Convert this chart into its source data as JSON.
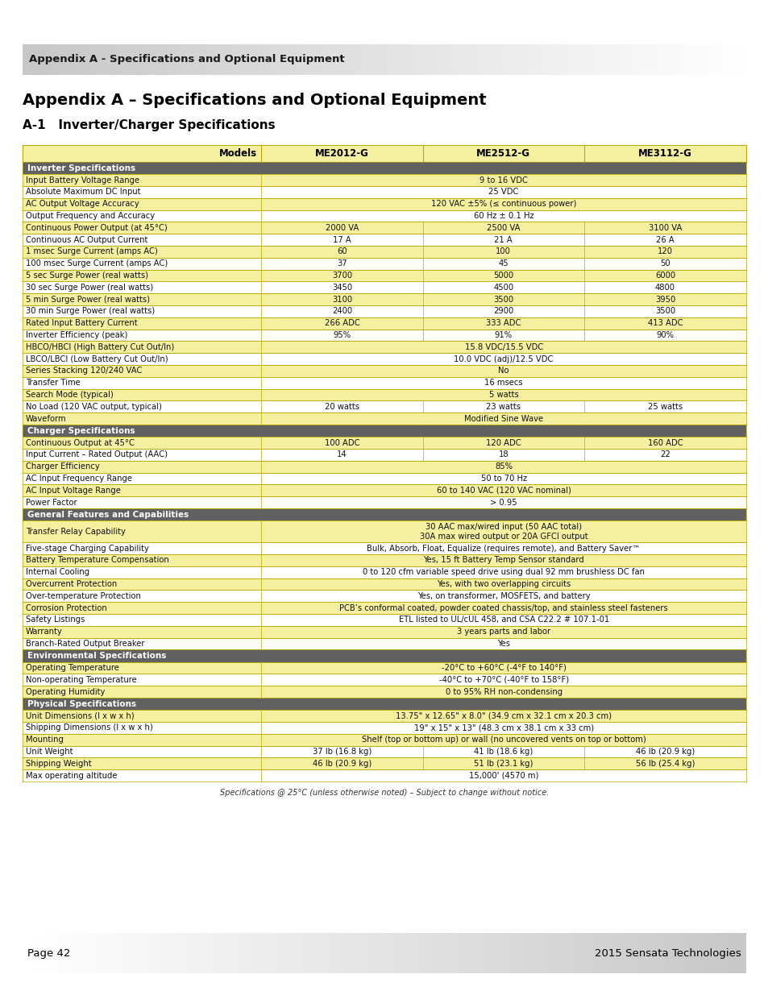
{
  "header_banner_text": "Appendix A - Specifications and Optional Equipment",
  "title1": "Appendix A – Specifications and Optional Equipment",
  "title2": "A-1   Inverter/Charger Specifications",
  "footer_left": "Page 42",
  "footer_right": "2015 Sensata Technologies",
  "footnote": "Specifications @ 25°C (unless otherwise noted) – Subject to change without notice.",
  "col_headers": [
    "Models",
    "ME2012-G",
    "ME2512-G",
    "ME3112-G"
  ],
  "section_color": "#616161",
  "section_text_color": "#ffffff",
  "row_yellow": "#f5f0a0",
  "row_white": "#ffffff",
  "border_color": "#b8a800",
  "rows": [
    {
      "type": "section",
      "label": "Inverter Specifications",
      "cols": [
        "",
        "",
        ""
      ]
    },
    {
      "type": "data",
      "color": "yellow",
      "label": "Input Battery Voltage Range",
      "cols": [
        "9 to 16 VDC",
        "",
        ""
      ]
    },
    {
      "type": "data",
      "color": "white",
      "label": "Absolute Maximum DC Input",
      "cols": [
        "25 VDC",
        "",
        ""
      ]
    },
    {
      "type": "data",
      "color": "yellow",
      "label": "AC Output Voltage Accuracy",
      "cols": [
        "120 VAC ±5% (≤ continuous power)",
        "",
        ""
      ]
    },
    {
      "type": "data",
      "color": "white",
      "label": "Output Frequency and Accuracy",
      "cols": [
        "60 Hz ± 0.1 Hz",
        "",
        ""
      ]
    },
    {
      "type": "data",
      "color": "yellow",
      "label": "Continuous Power Output (at 45°C)",
      "cols": [
        "2000 VA",
        "2500 VA",
        "3100 VA"
      ]
    },
    {
      "type": "data",
      "color": "white",
      "label": "Continuous AC Output Current",
      "cols": [
        "17 A",
        "21 A",
        "26 A"
      ]
    },
    {
      "type": "data",
      "color": "yellow",
      "label": "1 msec Surge Current (amps AC)",
      "cols": [
        "60",
        "100",
        "120"
      ]
    },
    {
      "type": "data",
      "color": "white",
      "label": "100 msec Surge Current (amps AC)",
      "cols": [
        "37",
        "45",
        "50"
      ]
    },
    {
      "type": "data",
      "color": "yellow",
      "label": "5 sec Surge Power (real watts)",
      "cols": [
        "3700",
        "5000",
        "6000"
      ]
    },
    {
      "type": "data",
      "color": "white",
      "label": "30 sec Surge Power (real watts)",
      "cols": [
        "3450",
        "4500",
        "4800"
      ]
    },
    {
      "type": "data",
      "color": "yellow",
      "label": "5 min Surge Power (real watts)",
      "cols": [
        "3100",
        "3500",
        "3950"
      ]
    },
    {
      "type": "data",
      "color": "white",
      "label": "30 min Surge Power (real watts)",
      "cols": [
        "2400",
        "2900",
        "3500"
      ]
    },
    {
      "type": "data",
      "color": "yellow",
      "label": "Rated Input Battery Current",
      "cols": [
        "266 ADC",
        "333 ADC",
        "413 ADC"
      ]
    },
    {
      "type": "data",
      "color": "white",
      "label": "Inverter Efficiency (peak)",
      "cols": [
        "95%",
        "91%",
        "90%"
      ]
    },
    {
      "type": "data",
      "color": "yellow",
      "label": "HBCO/HBCI (High Battery Cut Out/In)",
      "cols": [
        "15.8 VDC/15.5 VDC",
        "",
        ""
      ]
    },
    {
      "type": "data",
      "color": "white",
      "label": "LBCO/LBCI (Low Battery Cut Out/In)",
      "cols": [
        "10.0 VDC (adj)/12.5 VDC",
        "",
        ""
      ]
    },
    {
      "type": "data",
      "color": "yellow",
      "label": "Series Stacking 120/240 VAC",
      "cols": [
        "No",
        "",
        ""
      ]
    },
    {
      "type": "data",
      "color": "white",
      "label": "Transfer Time",
      "cols": [
        "16 msecs",
        "",
        ""
      ]
    },
    {
      "type": "data",
      "color": "yellow",
      "label": "Search Mode (typical)",
      "cols": [
        "5 watts",
        "",
        ""
      ]
    },
    {
      "type": "data",
      "color": "white",
      "label": "No Load (120 VAC output, typical)",
      "cols": [
        "20 watts",
        "23 watts",
        "25 watts"
      ]
    },
    {
      "type": "data",
      "color": "yellow",
      "label": "Waveform",
      "cols": [
        "Modified Sine Wave",
        "",
        ""
      ]
    },
    {
      "type": "section",
      "label": "Charger Specifications",
      "cols": [
        "",
        "",
        ""
      ]
    },
    {
      "type": "data",
      "color": "yellow",
      "label": "Continuous Output at 45°C",
      "cols": [
        "100 ADC",
        "120 ADC",
        "160 ADC"
      ]
    },
    {
      "type": "data",
      "color": "white",
      "label": "Input Current – Rated Output (AAC)",
      "cols": [
        "14",
        "18",
        "22"
      ]
    },
    {
      "type": "data",
      "color": "yellow",
      "label": "Charger Efficiency",
      "cols": [
        "85%",
        "",
        ""
      ]
    },
    {
      "type": "data",
      "color": "white",
      "label": "AC Input Frequency Range",
      "cols": [
        "50 to 70 Hz",
        "",
        ""
      ]
    },
    {
      "type": "data",
      "color": "yellow",
      "label": "AC Input Voltage Range",
      "cols": [
        "60 to 140 VAC (120 VAC nominal)",
        "",
        ""
      ]
    },
    {
      "type": "data",
      "color": "white",
      "label": "Power Factor",
      "cols": [
        "> 0.95",
        "",
        ""
      ]
    },
    {
      "type": "section",
      "label": "General Features and Capabilities",
      "cols": [
        "",
        "",
        ""
      ]
    },
    {
      "type": "data",
      "color": "yellow",
      "label": "Transfer Relay Capability",
      "cols": [
        "30 AAC max/wired input (50 AAC total)\n30A max wired output or 20A GFCI output",
        "",
        ""
      ]
    },
    {
      "type": "data",
      "color": "white",
      "label": "Five-stage Charging Capability",
      "cols": [
        "Bulk, Absorb, Float, Equalize (requires remote), and Battery Saver™",
        "",
        ""
      ]
    },
    {
      "type": "data",
      "color": "yellow",
      "label": "Battery Temperature Compensation",
      "cols": [
        "Yes, 15 ft Battery Temp Sensor standard",
        "",
        ""
      ]
    },
    {
      "type": "data",
      "color": "white",
      "label": "Internal Cooling",
      "cols": [
        "0 to 120 cfm variable speed drive using dual 92 mm brushless DC fan",
        "",
        ""
      ]
    },
    {
      "type": "data",
      "color": "yellow",
      "label": "Overcurrent Protection",
      "cols": [
        "Yes, with two overlapping circuits",
        "",
        ""
      ]
    },
    {
      "type": "data",
      "color": "white",
      "label": "Over-temperature Protection",
      "cols": [
        "Yes, on transformer, MOSFETS, and battery",
        "",
        ""
      ]
    },
    {
      "type": "data",
      "color": "yellow",
      "label": "Corrosion Protection",
      "cols": [
        "PCB’s conformal coated, powder coated chassis/top, and stainless steel fasteners",
        "",
        ""
      ]
    },
    {
      "type": "data",
      "color": "white",
      "label": "Safety Listings",
      "cols": [
        "ETL listed to UL/cUL 458, and CSA C22.2 # 107.1-01",
        "",
        ""
      ]
    },
    {
      "type": "data",
      "color": "yellow",
      "label": "Warranty",
      "cols": [
        "3 years parts and labor",
        "",
        ""
      ]
    },
    {
      "type": "data",
      "color": "white",
      "label": "Branch-Rated Output Breaker",
      "cols": [
        "Yes",
        "",
        ""
      ]
    },
    {
      "type": "section",
      "label": "Environmental Specifications",
      "cols": [
        "",
        "",
        ""
      ]
    },
    {
      "type": "data",
      "color": "yellow",
      "label": "Operating Temperature",
      "cols": [
        "-20°C to +60°C (-4°F to 140°F)",
        "",
        ""
      ]
    },
    {
      "type": "data",
      "color": "white",
      "label": "Non-operating Temperature",
      "cols": [
        "-40°C to +70°C (-40°F to 158°F)",
        "",
        ""
      ]
    },
    {
      "type": "data",
      "color": "yellow",
      "label": "Operating Humidity",
      "cols": [
        "0 to 95% RH non-condensing",
        "",
        ""
      ]
    },
    {
      "type": "section",
      "label": "Physical Specifications",
      "cols": [
        "",
        "",
        ""
      ]
    },
    {
      "type": "data",
      "color": "yellow",
      "label": "Unit Dimensions (l x w x h)",
      "cols": [
        "13.75\" x 12.65\" x 8.0\" (34.9 cm x 32.1 cm x 20.3 cm)",
        "",
        ""
      ]
    },
    {
      "type": "data",
      "color": "white",
      "label": "Shipping Dimensions (l x w x h)",
      "cols": [
        "19\" x 15\" x 13\" (48.3 cm x 38.1 cm x 33 cm)",
        "",
        ""
      ]
    },
    {
      "type": "data",
      "color": "yellow",
      "label": "Mounting",
      "cols": [
        "Shelf (top or bottom up) or wall (no uncovered vents on top or bottom)",
        "",
        ""
      ]
    },
    {
      "type": "data",
      "color": "white",
      "label": "Unit Weight",
      "cols": [
        "37 lb (16.8 kg)",
        "41 lb (18.6 kg)",
        "46 lb (20.9 kg)"
      ]
    },
    {
      "type": "data",
      "color": "yellow",
      "label": "Shipping Weight",
      "cols": [
        "46 lb (20.9 kg)",
        "51 lb (23.1 kg)",
        "56 lb (25.4 kg)"
      ]
    },
    {
      "type": "data",
      "color": "white",
      "label": "Max operating altitude",
      "cols": [
        "15,000' (4570 m)",
        "",
        ""
      ]
    }
  ]
}
